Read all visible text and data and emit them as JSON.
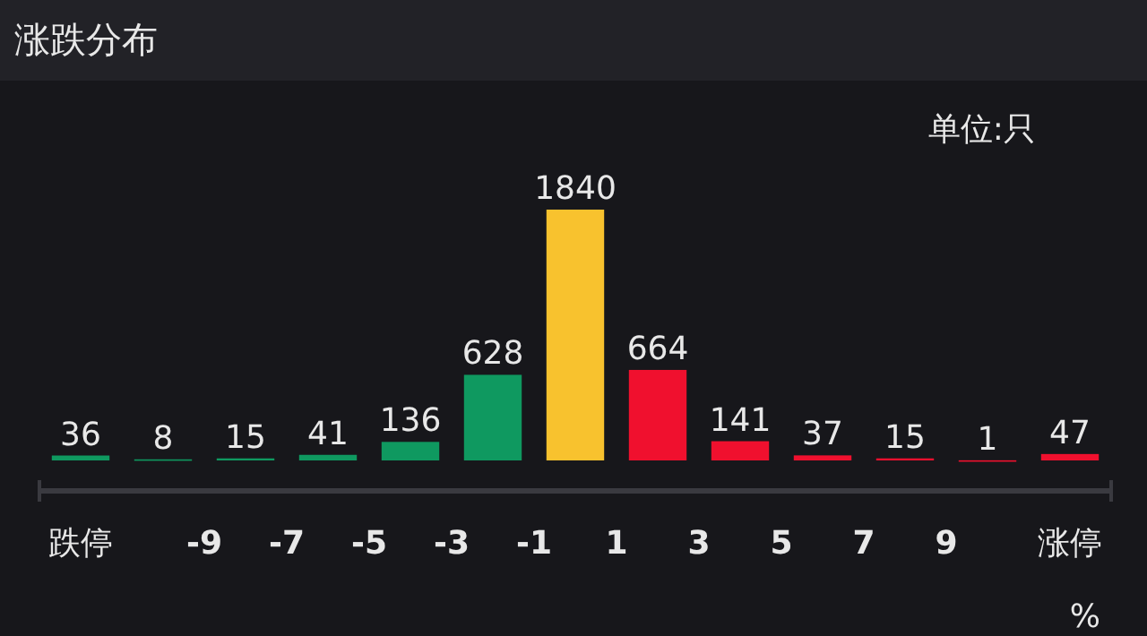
{
  "chart_data": {
    "type": "bar",
    "title": "涨跌分布",
    "annotations": [
      "单位:只"
    ],
    "xlabel": "%",
    "x": [
      -12,
      -10,
      -8,
      -6,
      -4,
      -2,
      0,
      2,
      4,
      6,
      8,
      10,
      12
    ],
    "xlim": [
      -13,
      13
    ],
    "xticks": [
      {
        "value": -12,
        "label": "跌停"
      },
      -9,
      -7,
      -5,
      -3,
      -1,
      1,
      3,
      5,
      7,
      9,
      {
        "value": 12,
        "label": "涨停"
      }
    ],
    "values": [
      36,
      8,
      15,
      41,
      136,
      628,
      1840,
      664,
      141,
      37,
      15,
      1,
      47
    ],
    "colors": [
      "#0f9960",
      "#0f9960",
      "#0f9960",
      "#0f9960",
      "#0f9960",
      "#0f9960",
      "#f8c22e",
      "#f0102e",
      "#f0102e",
      "#f0102e",
      "#f0102e",
      "#f0102e",
      "#f0102e"
    ],
    "data_labels": true
  }
}
